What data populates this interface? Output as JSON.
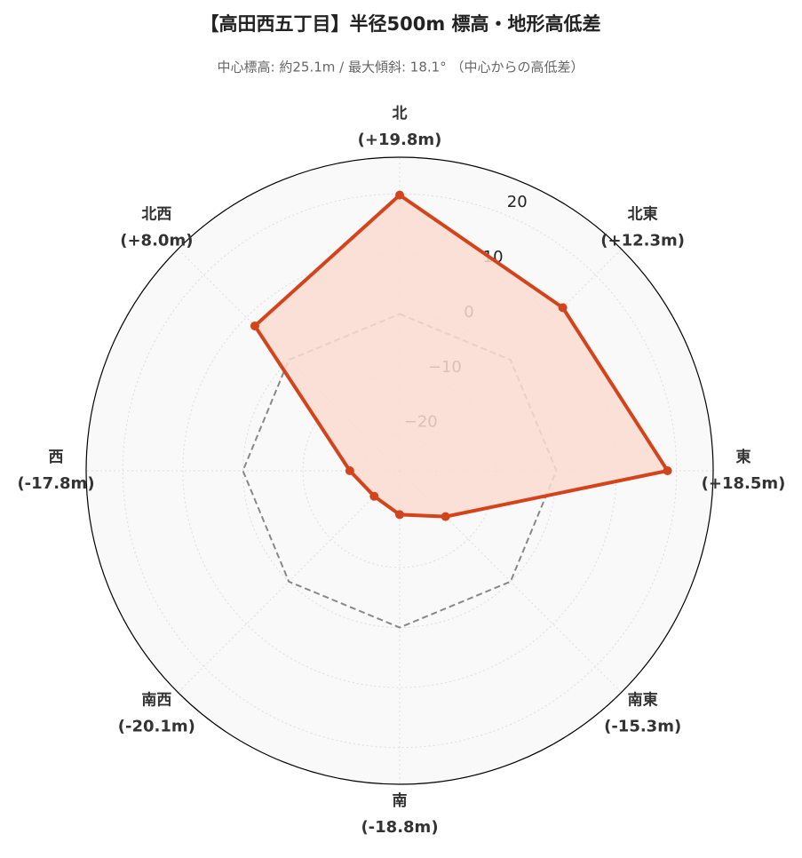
{
  "chart_data": {
    "type": "radar",
    "title": "【高田西五丁目】半径500m 標高・地形高低差",
    "subtitle": "中心標高: 約25.1m / 最大傾斜: 18.1° （中心からの高低差）",
    "categories": [
      "北",
      "北東",
      "東",
      "南東",
      "南",
      "南西",
      "西",
      "北西"
    ],
    "series": [
      {
        "color": "#d4441c",
        "fill": "#fcdcd2",
        "values": [
          19.8,
          12.3,
          18.5,
          -15.3,
          -18.8,
          -20.1,
          -17.8,
          8.0
        ],
        "value_labels": [
          "(+19.8m)",
          "(+12.3m)",
          "(+18.5m)",
          "(-15.3m)",
          "(-18.8m)",
          "(-20.1m)",
          "(-17.8m)",
          "(+8.0m)"
        ]
      }
    ],
    "reference": {
      "value": 0,
      "color": "#888888"
    },
    "ylim": [
      -26.1,
      26.1
    ],
    "yticks": [
      {
        "value": -20,
        "label": "−20"
      },
      {
        "value": -10,
        "label": "−10"
      },
      0,
      10,
      20
    ],
    "grid": true
  }
}
